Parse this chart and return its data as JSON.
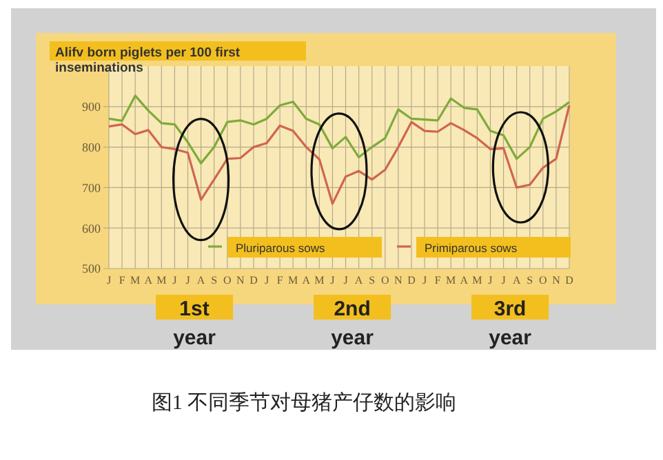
{
  "chart_data": {
    "type": "line",
    "title": "Alifv born piglets per 100  first inseminations",
    "categories": [
      "J",
      "F",
      "M",
      "A",
      "M",
      "J",
      "J",
      "A",
      "S",
      "O",
      "N",
      "D",
      "J",
      "F",
      "M",
      "A",
      "M",
      "J",
      "J",
      "A",
      "S",
      "O",
      "N",
      "D",
      "J",
      "F",
      "M",
      "A",
      "M",
      "J",
      "J",
      "A",
      "S",
      "O",
      "N",
      "D"
    ],
    "series": [
      {
        "name": "Pluriparous sows",
        "color": "#7faa3a",
        "values": [
          870,
          865,
          927,
          890,
          859,
          856,
          812,
          760,
          800,
          862,
          866,
          856,
          870,
          903,
          912,
          870,
          856,
          797,
          825,
          775,
          800,
          822,
          893,
          870,
          868,
          866,
          920,
          897,
          893,
          840,
          829,
          771,
          800,
          870,
          888,
          911
        ]
      },
      {
        "name": "Primiparous sows",
        "color": "#d0654f",
        "values": [
          851,
          856,
          832,
          842,
          800,
          795,
          786,
          670,
          720,
          771,
          773,
          800,
          810,
          853,
          840,
          800,
          770,
          660,
          727,
          741,
          720,
          744,
          800,
          862,
          840,
          838,
          859,
          842,
          822,
          795,
          797,
          700,
          707,
          749,
          771,
          903
        ]
      }
    ],
    "ylim": [
      500,
      1000
    ],
    "yticks": [
      500,
      600,
      700,
      800,
      900
    ],
    "grid": true,
    "legend": "bottom right",
    "marker": "none",
    "line_style": "solid",
    "annotations": [
      "1st year",
      "2nd year",
      "3rd year",
      "图1  不同季节对母猪产仔数的影响"
    ]
  }
}
